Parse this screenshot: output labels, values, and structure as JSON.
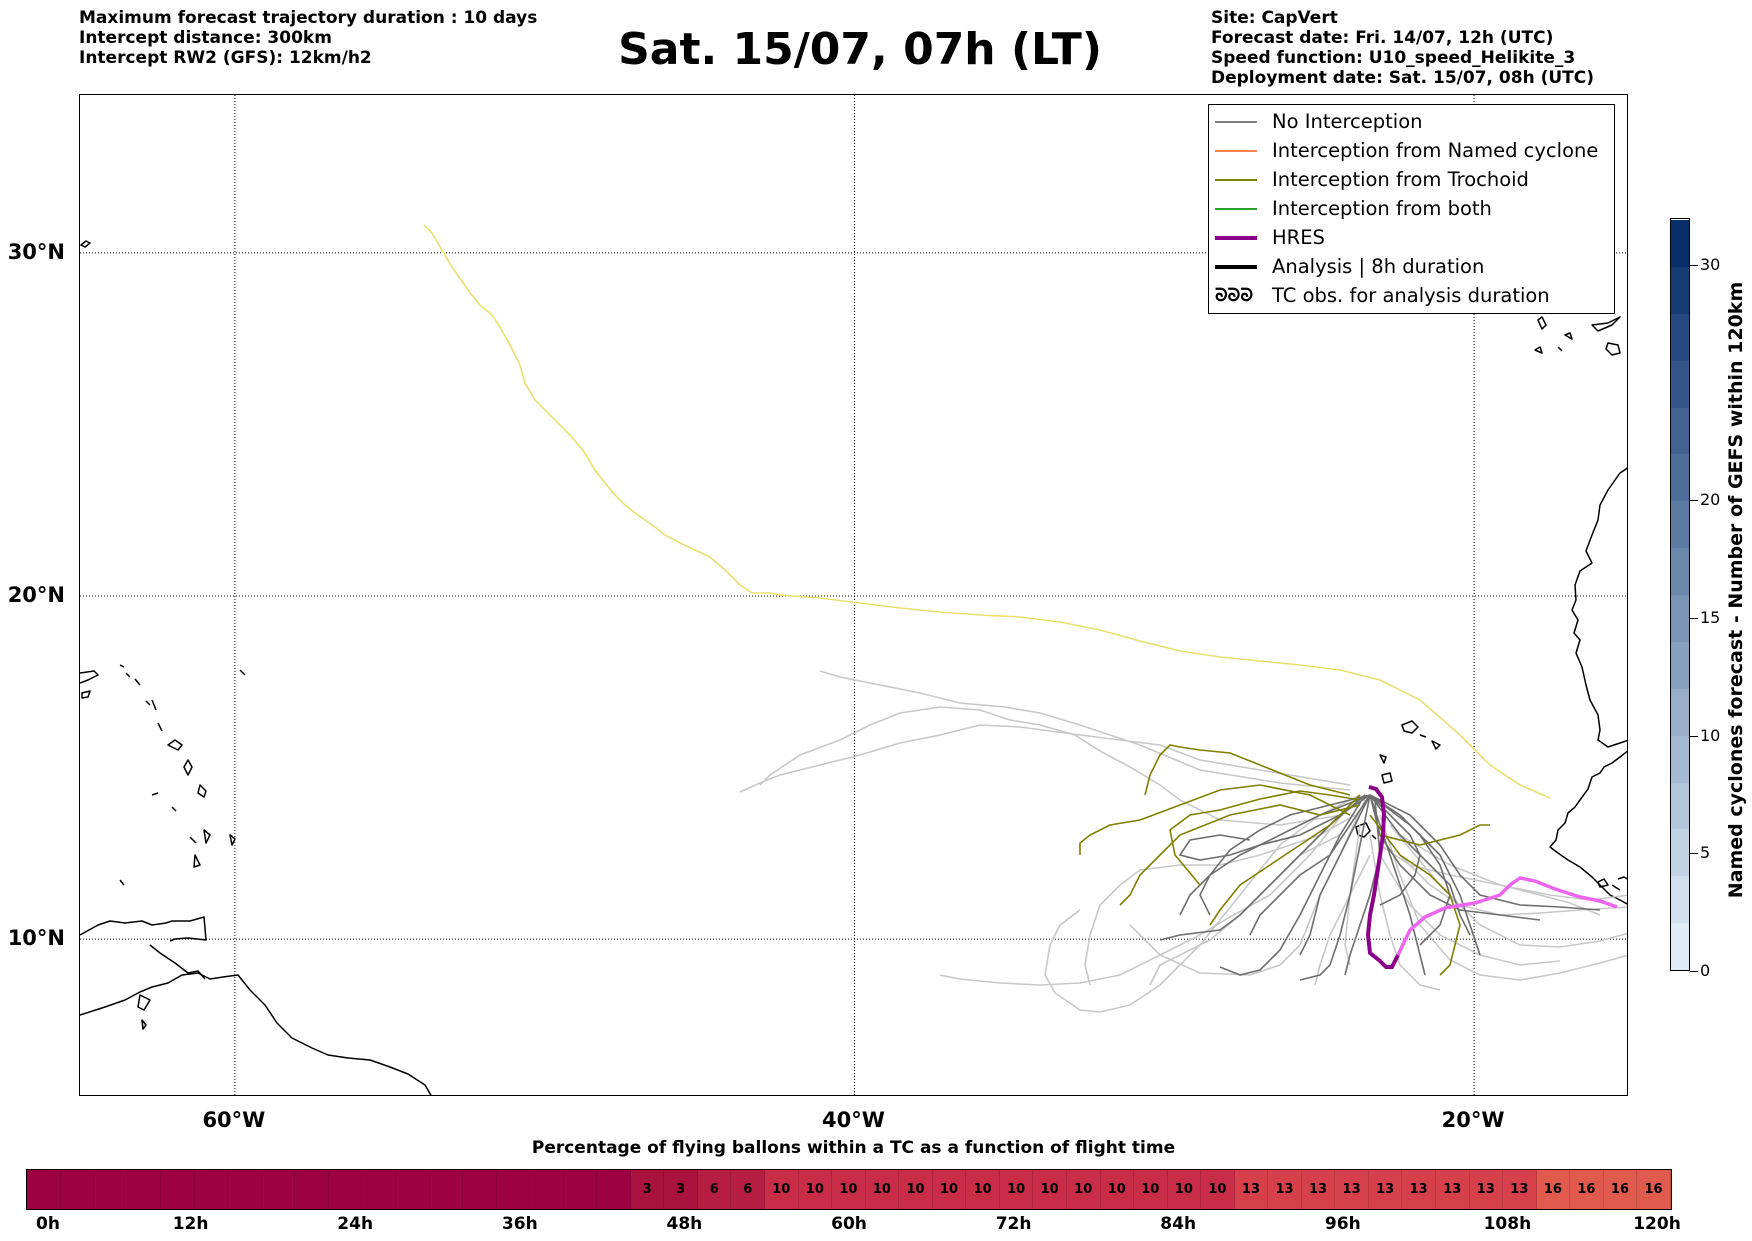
{
  "header": {
    "left_lines": [
      "Maximum forecast trajectory duration : 10 days",
      "Intercept distance: 300km",
      "Intercept RW2 (GFS):  12km/h2"
    ],
    "title": "Sat. 15/07, 07h (LT)",
    "right_lines": [
      "Site: CapVert",
      "Forecast date: Fri. 14/07, 12h (UTC)",
      "Speed function: U10_speed_Helikite_3",
      "Deployment date: Sat. 15/07, 08h (UTC)"
    ]
  },
  "map": {
    "lon_range": [
      -65,
      -15
    ],
    "lat_range": [
      5.4,
      34.6
    ],
    "lat_labels": [
      "30°N",
      "20°N",
      "10°N"
    ],
    "lat_values": [
      30,
      20,
      10
    ],
    "lon_labels": [
      "60°W",
      "40°W",
      "20°W"
    ],
    "lon_values": [
      -60,
      -40,
      -20
    ]
  },
  "legend": {
    "items": [
      {
        "label": "No Interception",
        "color": "#808080",
        "style": "thin"
      },
      {
        "label": "Interception from Named cyclone",
        "color": "#ff7f50",
        "style": "thin"
      },
      {
        "label": "Interception from Trochoid",
        "color": "#808000",
        "style": "thin"
      },
      {
        "label": "Interception from both",
        "color": "#2ca02c",
        "style": "thin"
      },
      {
        "label": "HRES",
        "color": "#8b008b",
        "style": "thick"
      },
      {
        "label": "Analysis | 8h duration",
        "color": "#000000",
        "style": "thick"
      },
      {
        "label": "TC obs. for analysis duration",
        "symbol": "ᘐᘐᘐ",
        "style": "symbol"
      }
    ]
  },
  "colorbar": {
    "title": "Named cyclones forecast - Number of GEFS within 120km",
    "ticks": [
      "0",
      "5",
      "10",
      "15",
      "20",
      "30"
    ],
    "tick_values": [
      0,
      5,
      10,
      15,
      20,
      30
    ],
    "range": [
      0,
      32
    ]
  },
  "percentage_bar": {
    "title": "Percentage of flying ballons within a TC as a function of flight time",
    "cells": [
      "",
      "",
      "",
      "",
      "",
      "",
      "",
      "",
      "",
      "",
      "",
      "",
      "",
      "",
      "",
      "",
      "",
      "",
      "3",
      "3",
      "6",
      "6",
      "10",
      "10",
      "10",
      "10",
      "10",
      "10",
      "10",
      "10",
      "10",
      "10",
      "10",
      "10",
      "10",
      "10",
      "13",
      "13",
      "13",
      "13",
      "13",
      "13",
      "13",
      "13",
      "13",
      "16",
      "16",
      "16",
      "16"
    ],
    "tick_labels": [
      "0h",
      "12h",
      "24h",
      "36h",
      "48h",
      "60h",
      "72h",
      "84h",
      "96h",
      "108h",
      "120h"
    ]
  }
}
